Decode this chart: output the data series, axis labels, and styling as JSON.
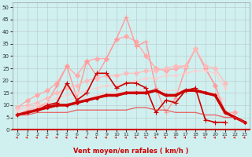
{
  "xlabel": "Vent moyen/en rafales ( km/h )",
  "xlim": [
    -0.5,
    23.5
  ],
  "ylim": [
    0,
    52
  ],
  "yticks": [
    0,
    5,
    10,
    15,
    20,
    25,
    30,
    35,
    40,
    45,
    50
  ],
  "xticks": [
    0,
    1,
    2,
    3,
    4,
    5,
    6,
    7,
    8,
    9,
    10,
    11,
    12,
    13,
    14,
    15,
    16,
    17,
    18,
    19,
    20,
    21,
    22,
    23
  ],
  "bg_color": "#d0f0f0",
  "grid_color": "#aaaaaa",
  "lines": [
    {
      "y": [
        9,
        12,
        14,
        16,
        19,
        26,
        22,
        28,
        29,
        29,
        37,
        38,
        36,
        30,
        25,
        24,
        25,
        26,
        33,
        25,
        18,
        7,
        7,
        null
      ],
      "color": "#ffaaaa",
      "lw": 1.0,
      "marker": "D",
      "ms": 3,
      "alpha": 1.0
    },
    {
      "y": [
        6,
        8,
        9,
        11,
        18,
        26,
        13,
        28,
        22,
        29,
        37,
        46,
        34,
        36,
        17,
        7,
        13,
        25,
        33,
        25,
        18,
        7,
        null,
        null
      ],
      "color": "#ff9999",
      "lw": 1.0,
      "marker": "+",
      "ms": 5,
      "alpha": 1.0
    },
    {
      "y": [
        9,
        10,
        11,
        13,
        15,
        17,
        18,
        20,
        21,
        22,
        22,
        23,
        23,
        24,
        24,
        25,
        26,
        26,
        33,
        26,
        25,
        19,
        null,
        null
      ],
      "color": "#ffbbbb",
      "lw": 1.0,
      "marker": "D",
      "ms": 3,
      "alpha": 0.9
    },
    {
      "y": [
        8,
        9,
        10,
        11,
        13,
        14,
        15,
        16,
        17,
        18,
        18,
        19,
        20,
        21,
        21,
        22,
        22,
        23,
        24,
        24,
        23,
        17,
        null,
        null
      ],
      "color": "#ffcccc",
      "lw": 1.0,
      "marker": "D",
      "ms": 2,
      "alpha": 0.8
    },
    {
      "y": [
        7,
        8,
        9,
        10,
        11,
        12,
        13,
        13,
        14,
        15,
        15,
        15,
        16,
        16,
        16,
        16,
        16,
        16,
        16,
        15,
        15,
        12,
        null,
        null
      ],
      "color": "#ffcccc",
      "lw": 1.0,
      "marker": null,
      "ms": 0,
      "alpha": 0.75
    },
    {
      "y": [
        6,
        7,
        8,
        10,
        11,
        19,
        12,
        15,
        23,
        23,
        17,
        19,
        19,
        17,
        7,
        12,
        11,
        16,
        17,
        4,
        3,
        3,
        null,
        null
      ],
      "color": "#cc0000",
      "lw": 1.2,
      "marker": "+",
      "ms": 5,
      "alpha": 1.0
    },
    {
      "y": [
        6,
        7,
        8,
        9,
        10,
        10,
        11,
        12,
        13,
        14,
        14,
        15,
        15,
        15,
        16,
        14,
        14,
        16,
        16,
        15,
        14,
        7,
        5,
        3
      ],
      "color": "#cc0000",
      "lw": 2.5,
      "marker": "D",
      "ms": 2,
      "alpha": 1.0
    },
    {
      "y": [
        6,
        6,
        7,
        7,
        7,
        7,
        8,
        8,
        8,
        8,
        8,
        8,
        9,
        9,
        8,
        8,
        7,
        7,
        7,
        6,
        6,
        5,
        5,
        3
      ],
      "color": "#ee3333",
      "lw": 1.0,
      "marker": null,
      "ms": 0,
      "alpha": 0.7
    }
  ]
}
